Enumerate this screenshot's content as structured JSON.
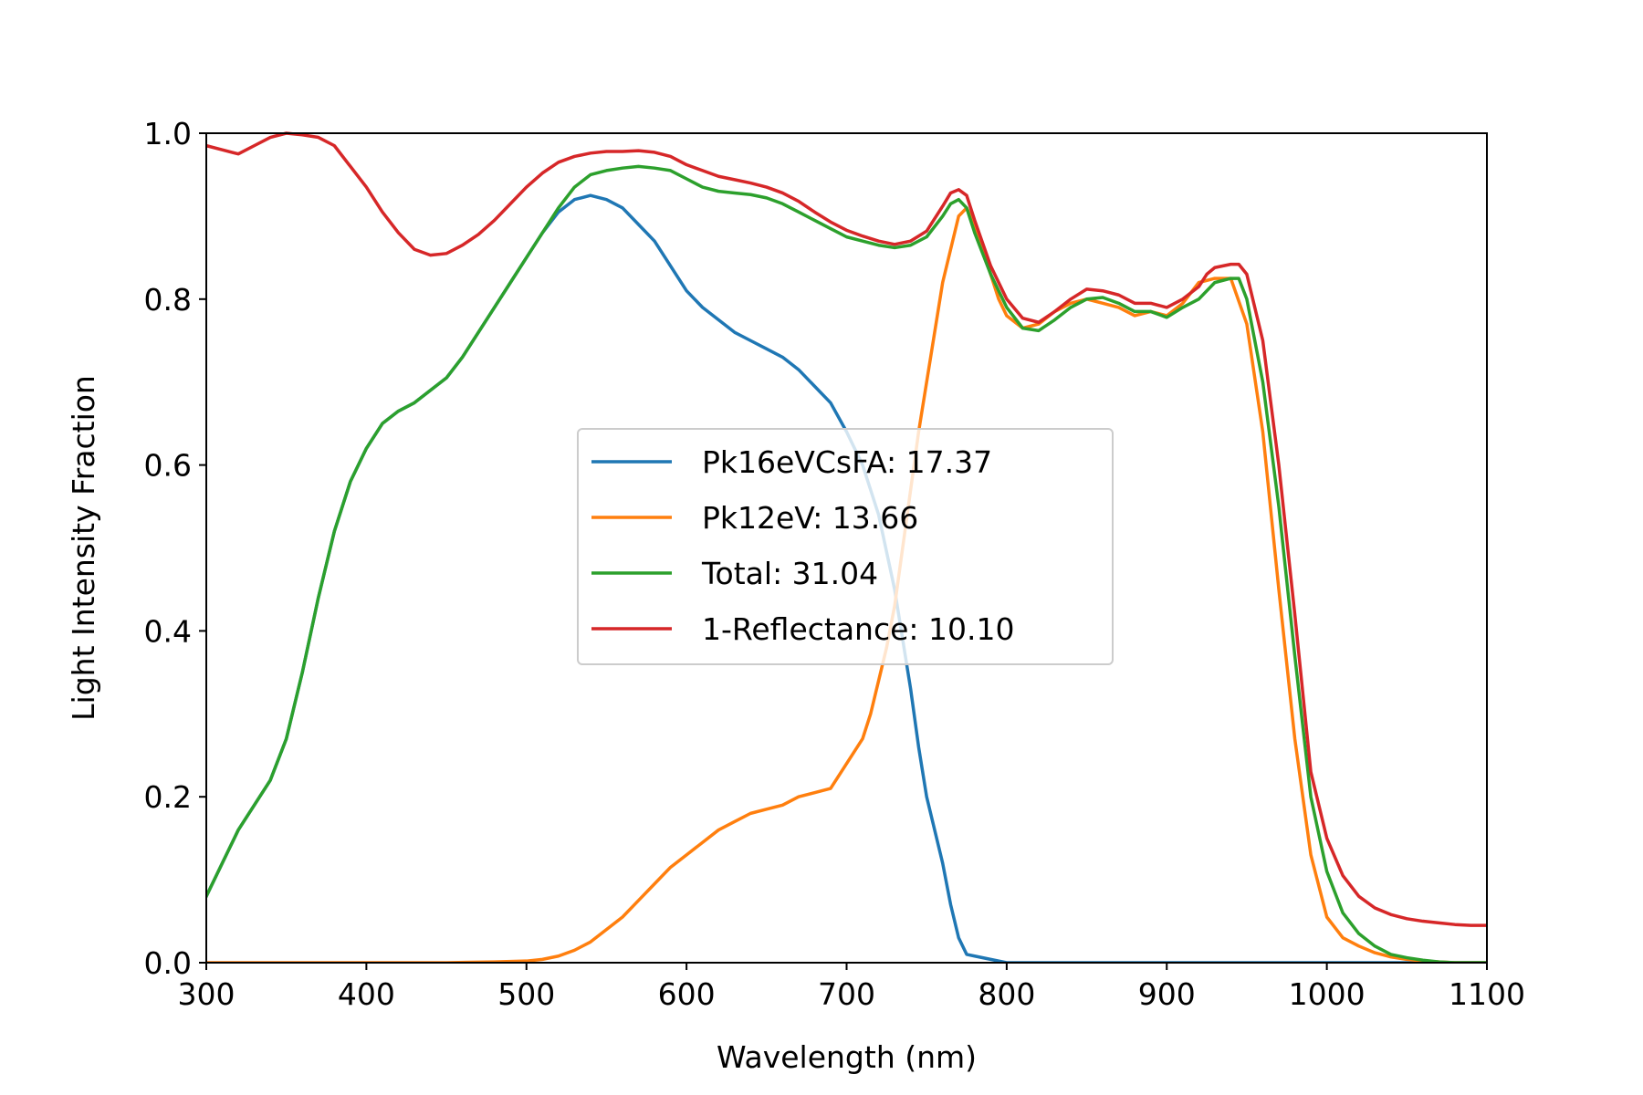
{
  "chart_data": {
    "type": "line",
    "title": "",
    "xlabel": "Wavelength (nm)",
    "ylabel": "Light Intensity Fraction",
    "xlim": [
      300,
      1100
    ],
    "ylim": [
      0,
      1.0
    ],
    "xticks": [
      300,
      400,
      500,
      600,
      700,
      800,
      900,
      1000,
      1100
    ],
    "yticks": [
      0.0,
      0.2,
      0.4,
      0.6,
      0.8,
      1.0
    ],
    "grid": false,
    "legend_position": "center",
    "series": [
      {
        "name": "Pk16eVCsFA: 17.37",
        "color": "#1f77b4",
        "x": [
          300,
          310,
          320,
          330,
          340,
          350,
          360,
          370,
          380,
          390,
          400,
          410,
          420,
          430,
          440,
          450,
          460,
          470,
          480,
          490,
          500,
          510,
          520,
          530,
          540,
          550,
          560,
          570,
          580,
          590,
          600,
          610,
          620,
          630,
          640,
          650,
          660,
          670,
          680,
          690,
          700,
          710,
          720,
          730,
          740,
          745,
          750,
          755,
          760,
          765,
          770,
          775,
          780,
          790,
          800,
          820,
          850,
          900,
          950,
          1000,
          1050,
          1100
        ],
        "y": [
          0.08,
          0.12,
          0.16,
          0.19,
          0.22,
          0.27,
          0.35,
          0.44,
          0.52,
          0.58,
          0.62,
          0.65,
          0.665,
          0.675,
          0.69,
          0.705,
          0.73,
          0.76,
          0.79,
          0.82,
          0.85,
          0.88,
          0.905,
          0.92,
          0.925,
          0.92,
          0.91,
          0.89,
          0.87,
          0.84,
          0.81,
          0.79,
          0.775,
          0.76,
          0.75,
          0.74,
          0.73,
          0.715,
          0.695,
          0.675,
          0.64,
          0.6,
          0.54,
          0.45,
          0.33,
          0.26,
          0.2,
          0.16,
          0.12,
          0.07,
          0.03,
          0.01,
          0.008,
          0.004,
          0.0,
          0.0,
          0.0,
          0.0,
          0.0,
          0.0,
          0.0,
          0.0
        ]
      },
      {
        "name": "Pk12eV: 13.66",
        "color": "#ff7f0e",
        "x": [
          300,
          350,
          400,
          450,
          480,
          500,
          510,
          520,
          530,
          540,
          550,
          560,
          570,
          580,
          590,
          600,
          610,
          620,
          630,
          640,
          650,
          660,
          670,
          680,
          690,
          700,
          705,
          710,
          715,
          720,
          725,
          730,
          735,
          740,
          745,
          750,
          755,
          760,
          765,
          770,
          775,
          780,
          785,
          790,
          795,
          800,
          810,
          820,
          830,
          840,
          850,
          860,
          870,
          880,
          890,
          900,
          910,
          920,
          930,
          940,
          950,
          960,
          970,
          980,
          990,
          1000,
          1010,
          1020,
          1030,
          1040,
          1050,
          1060,
          1070,
          1080,
          1090,
          1100
        ],
        "y": [
          0.0,
          0.0,
          0.0,
          0.0,
          0.001,
          0.002,
          0.004,
          0.008,
          0.015,
          0.025,
          0.04,
          0.055,
          0.075,
          0.095,
          0.115,
          0.13,
          0.145,
          0.16,
          0.17,
          0.18,
          0.185,
          0.19,
          0.2,
          0.205,
          0.21,
          0.24,
          0.255,
          0.27,
          0.3,
          0.34,
          0.38,
          0.43,
          0.5,
          0.57,
          0.64,
          0.7,
          0.76,
          0.82,
          0.86,
          0.9,
          0.91,
          0.89,
          0.86,
          0.83,
          0.8,
          0.78,
          0.765,
          0.77,
          0.785,
          0.795,
          0.8,
          0.795,
          0.79,
          0.78,
          0.785,
          0.78,
          0.795,
          0.82,
          0.825,
          0.825,
          0.77,
          0.64,
          0.45,
          0.27,
          0.13,
          0.055,
          0.03,
          0.02,
          0.012,
          0.007,
          0.004,
          0.002,
          0.001,
          0.0,
          0.0,
          0.0
        ]
      },
      {
        "name": "Total: 31.04",
        "color": "#2ca02c",
        "x": [
          300,
          310,
          320,
          330,
          340,
          350,
          360,
          370,
          380,
          390,
          400,
          410,
          420,
          430,
          440,
          450,
          460,
          470,
          480,
          490,
          500,
          510,
          520,
          530,
          540,
          550,
          560,
          570,
          580,
          590,
          600,
          610,
          620,
          630,
          640,
          650,
          660,
          670,
          680,
          690,
          700,
          710,
          720,
          730,
          740,
          750,
          760,
          765,
          770,
          775,
          780,
          790,
          800,
          810,
          820,
          830,
          840,
          850,
          860,
          870,
          880,
          890,
          900,
          910,
          920,
          930,
          940,
          945,
          950,
          960,
          970,
          980,
          990,
          1000,
          1010,
          1020,
          1030,
          1040,
          1050,
          1060,
          1070,
          1080,
          1090,
          1100
        ],
        "y": [
          0.08,
          0.12,
          0.16,
          0.19,
          0.22,
          0.27,
          0.35,
          0.44,
          0.52,
          0.58,
          0.62,
          0.65,
          0.665,
          0.675,
          0.69,
          0.705,
          0.73,
          0.76,
          0.79,
          0.82,
          0.85,
          0.88,
          0.91,
          0.935,
          0.95,
          0.955,
          0.958,
          0.96,
          0.958,
          0.955,
          0.945,
          0.935,
          0.93,
          0.928,
          0.926,
          0.922,
          0.915,
          0.905,
          0.895,
          0.885,
          0.875,
          0.87,
          0.865,
          0.862,
          0.865,
          0.875,
          0.9,
          0.915,
          0.92,
          0.91,
          0.88,
          0.83,
          0.79,
          0.765,
          0.762,
          0.775,
          0.79,
          0.8,
          0.802,
          0.795,
          0.785,
          0.785,
          0.778,
          0.79,
          0.8,
          0.82,
          0.825,
          0.825,
          0.8,
          0.7,
          0.55,
          0.37,
          0.2,
          0.11,
          0.06,
          0.035,
          0.02,
          0.01,
          0.006,
          0.003,
          0.001,
          0.0,
          0.0,
          0.0
        ]
      },
      {
        "name": "1-Reflectance: 10.10",
        "color": "#d62728",
        "x": [
          300,
          310,
          320,
          330,
          340,
          350,
          360,
          370,
          380,
          390,
          400,
          410,
          420,
          430,
          440,
          450,
          460,
          470,
          480,
          490,
          500,
          510,
          520,
          530,
          540,
          550,
          560,
          570,
          580,
          590,
          600,
          610,
          620,
          630,
          640,
          650,
          660,
          670,
          680,
          690,
          700,
          710,
          720,
          730,
          740,
          750,
          760,
          765,
          770,
          775,
          780,
          790,
          800,
          810,
          820,
          830,
          840,
          850,
          860,
          870,
          880,
          890,
          900,
          910,
          920,
          925,
          930,
          940,
          945,
          950,
          960,
          970,
          980,
          990,
          1000,
          1010,
          1020,
          1030,
          1040,
          1050,
          1060,
          1070,
          1080,
          1090,
          1100
        ],
        "y": [
          0.985,
          0.98,
          0.975,
          0.985,
          0.995,
          1.0,
          0.998,
          0.995,
          0.985,
          0.96,
          0.935,
          0.905,
          0.88,
          0.86,
          0.853,
          0.855,
          0.865,
          0.878,
          0.895,
          0.915,
          0.935,
          0.952,
          0.965,
          0.972,
          0.976,
          0.978,
          0.978,
          0.979,
          0.977,
          0.972,
          0.962,
          0.955,
          0.948,
          0.944,
          0.94,
          0.935,
          0.928,
          0.918,
          0.905,
          0.893,
          0.883,
          0.876,
          0.87,
          0.866,
          0.87,
          0.882,
          0.912,
          0.928,
          0.932,
          0.925,
          0.895,
          0.84,
          0.8,
          0.777,
          0.772,
          0.785,
          0.8,
          0.812,
          0.81,
          0.805,
          0.795,
          0.795,
          0.79,
          0.8,
          0.815,
          0.83,
          0.838,
          0.842,
          0.842,
          0.83,
          0.75,
          0.6,
          0.42,
          0.23,
          0.15,
          0.105,
          0.08,
          0.066,
          0.058,
          0.053,
          0.05,
          0.048,
          0.046,
          0.045,
          0.045
        ]
      }
    ]
  }
}
